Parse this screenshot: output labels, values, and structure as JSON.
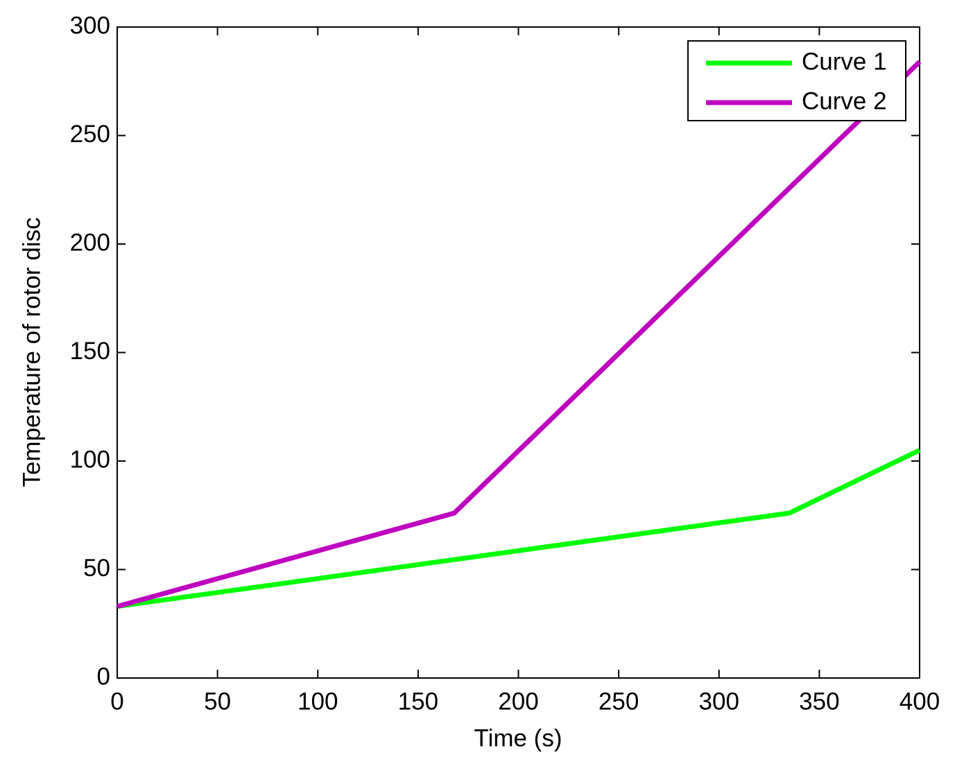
{
  "chart_data": {
    "type": "line",
    "x_label": "Time (s)",
    "y_label": "Temperature of rotor disc",
    "xlim": [
      0,
      400
    ],
    "ylim": [
      0,
      300
    ],
    "xticks": [
      0,
      50,
      100,
      150,
      200,
      250,
      300,
      350,
      400
    ],
    "yticks": [
      0,
      50,
      100,
      150,
      200,
      250,
      300
    ],
    "grid": false,
    "legend": "upper right",
    "series": [
      {
        "name": "Curve 1",
        "color": "#00ff00",
        "x": [
          0,
          335,
          400
        ],
        "values": [
          33,
          76,
          105
        ]
      },
      {
        "name": "Curve 2",
        "color": "#bf00bf",
        "x": [
          0,
          168,
          400
        ],
        "values": [
          33,
          76,
          284
        ]
      }
    ]
  }
}
